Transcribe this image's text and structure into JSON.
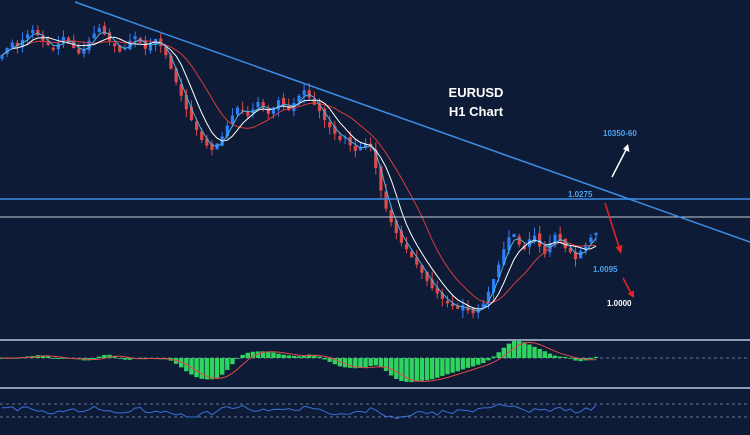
{
  "chart_data": {
    "type": "candlestick",
    "title": "EURUSD",
    "subtitle": "H1 Chart",
    "levels": [
      {
        "label": "1.0275",
        "value": 1.0275
      },
      {
        "label": "1.0095",
        "value": 1.0095
      },
      {
        "label": "1.0000",
        "value": 1.0
      }
    ],
    "target_label": "10350-60",
    "ohlc_close": [
      1.047,
      1.0478,
      1.0484,
      1.048,
      1.0487,
      1.0493,
      1.0498,
      1.0492,
      1.0486,
      1.0481,
      1.0476,
      1.0483,
      1.049,
      1.0484,
      1.0478,
      1.0472,
      1.0477,
      1.0486,
      1.0494,
      1.05,
      1.0493,
      1.0486,
      1.048,
      1.0474,
      1.0478,
      1.0486,
      1.0491,
      1.0484,
      1.0477,
      1.0482,
      1.0488,
      1.048,
      1.047,
      1.0455,
      1.044,
      1.0425,
      1.041,
      1.0398,
      1.0387,
      1.0376,
      1.037,
      1.0365,
      1.0372,
      1.038,
      1.0392,
      1.0403,
      1.0412,
      1.0408,
      1.0403,
      1.041,
      1.0418,
      1.0412,
      1.0405,
      1.0412,
      1.042,
      1.0415,
      1.0409,
      1.0417,
      1.0425,
      1.0431,
      1.0423,
      1.0415,
      1.0408,
      1.0398,
      1.039,
      1.0383,
      1.0376,
      1.0379,
      1.037,
      1.0364,
      1.0368,
      1.0372,
      1.0368,
      1.0345,
      1.032,
      1.03,
      1.0285,
      1.0273,
      1.0262,
      1.0255,
      1.0246,
      1.0238,
      1.0229,
      1.022,
      1.0212,
      1.0206,
      1.02,
      1.0195,
      1.0192,
      1.0189,
      1.0193,
      1.0187,
      1.0184,
      1.0188,
      1.0195,
      1.0208,
      1.0222,
      1.0238,
      1.0255,
      1.0268,
      1.0272,
      1.026,
      1.0255,
      1.0266,
      1.027,
      1.0258,
      1.025,
      1.0262,
      1.0271,
      1.0264,
      1.0256,
      1.0252,
      1.0244,
      1.0253,
      1.026,
      1.0268,
      1.0273
    ],
    "series": [
      {
        "name": "",
        "color": "#d93b3b"
      },
      {
        "name": "",
        "color": "#ffffff"
      },
      {
        "name": "",
        "color": "#4db3e6"
      }
    ],
    "ylim": [
      1.016,
      1.052
    ],
    "grid": false,
    "panels": [
      "price",
      "histogram",
      "oscillator"
    ]
  },
  "colors": {
    "background": "#0d1b36",
    "bull": "#2f7ef5",
    "bear": "#e04a4a",
    "trendline": "#3c8ee6",
    "histogram": "#2fd35f",
    "separator": "#8f9bb0",
    "arrow_white": "#ffffff",
    "arrow_red": "#e62626"
  }
}
